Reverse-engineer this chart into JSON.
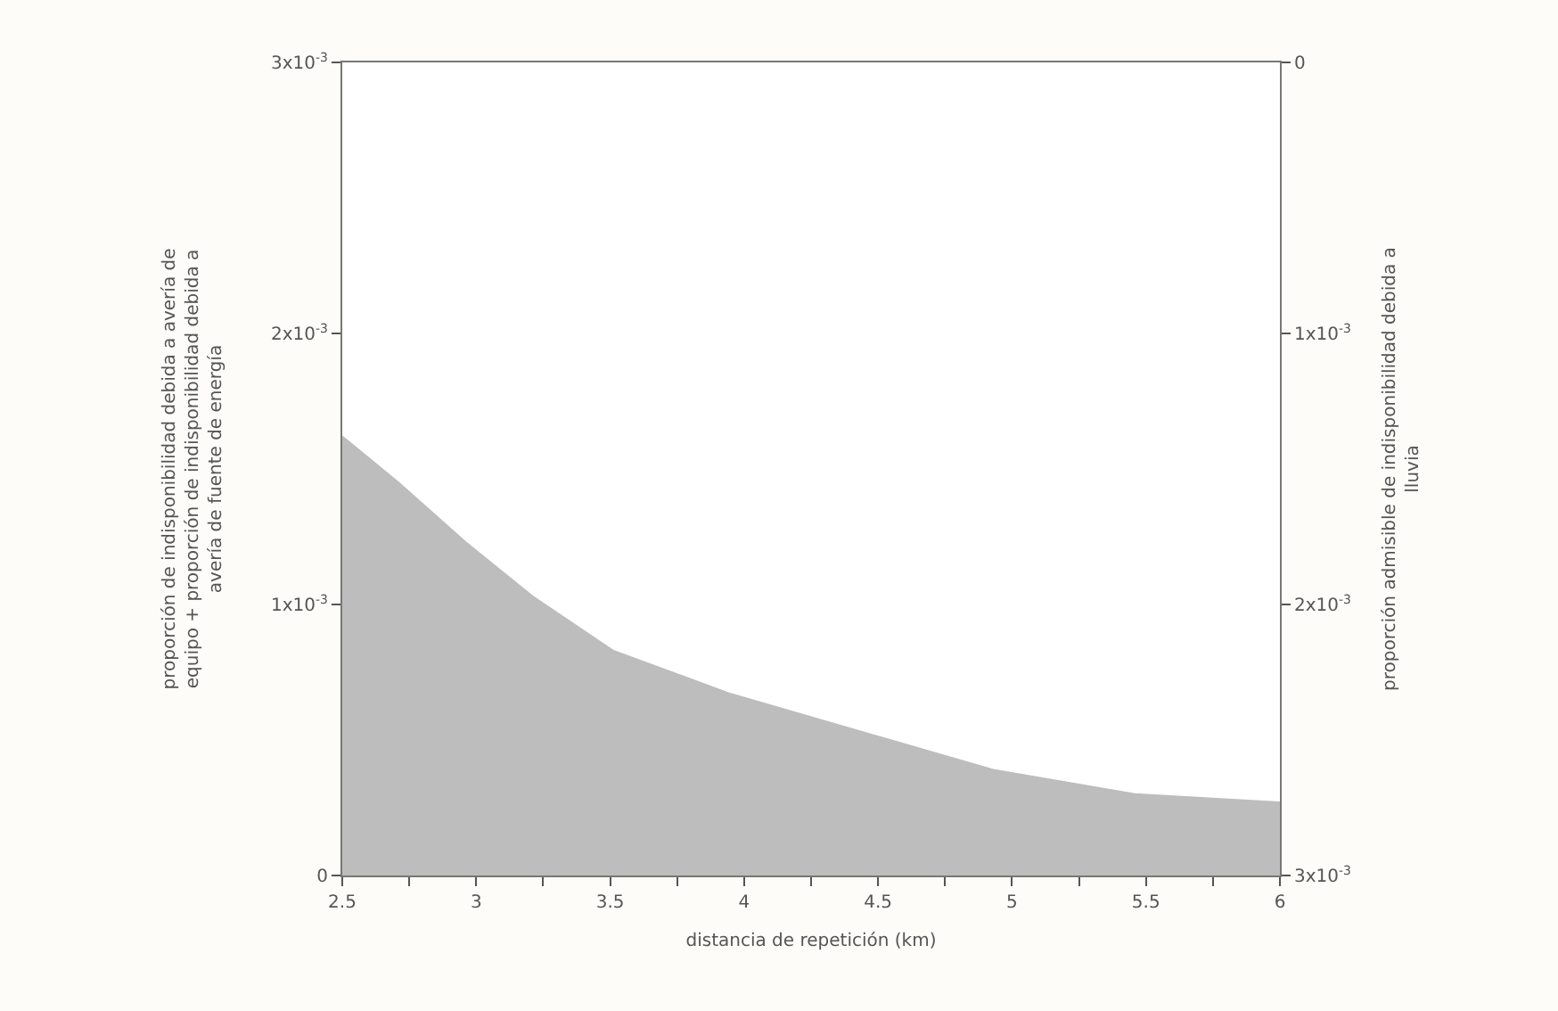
{
  "chart_data": {
    "type": "area",
    "xlabel": "distancia de repetición (km)",
    "ylabel": "proporción de indisponibilidad debida a avería de\nequipo + proporción de indisponibilidad debida a\navería de fuente de energía",
    "y2label": "proporción admisible de indisponibilidad debida a\nlluvia",
    "x": [
      2.5,
      2.71,
      2.96,
      3.21,
      3.51,
      3.95,
      4.44,
      4.93,
      5.46,
      6
    ],
    "series": [
      {
        "color": "#bdbdbd",
        "values": [
          0.00162,
          0.00145,
          0.00123,
          0.00103,
          0.00083,
          0.00067,
          0.00053,
          0.00039,
          0.0003,
          0.00027
        ]
      }
    ],
    "xlim": [
      2.5,
      6
    ],
    "xticks": [
      {
        "value": 2.5,
        "label": "2.5"
      },
      {
        "value": 2.75,
        "label": null
      },
      {
        "value": 3,
        "label": "3"
      },
      {
        "value": 3.25,
        "label": null
      },
      {
        "value": 3.5,
        "label": "3.5"
      },
      {
        "value": 3.75,
        "label": null
      },
      {
        "value": 4,
        "label": "4"
      },
      {
        "value": 4.25,
        "label": null
      },
      {
        "value": 4.5,
        "label": "4.5"
      },
      {
        "value": 4.75,
        "label": null
      },
      {
        "value": 5,
        "label": "5"
      },
      {
        "value": 5.25,
        "label": null
      },
      {
        "value": 5.5,
        "label": "5.5"
      },
      {
        "value": 5.75,
        "label": null
      },
      {
        "value": 6,
        "label": "6"
      }
    ],
    "ylim": [
      0,
      0.003
    ],
    "yticks": [
      0,
      {
        "value": 0.001,
        "label": "1x10$^{-3}$"
      },
      {
        "value": 0.002,
        "label": "2x10$^{-3}$"
      },
      {
        "value": 0.003,
        "label": "3x10$^{-3}$"
      }
    ],
    "y2lim": [
      0.003,
      0
    ],
    "y2ticks": [
      0,
      {
        "value": 0.001,
        "label": "1x10$^{-3}$"
      },
      {
        "value": 0.002,
        "label": "2x10$^{-3}$"
      },
      {
        "value": 0.003,
        "label": "3x10$^{-3}$"
      }
    ],
    "grid": false
  }
}
